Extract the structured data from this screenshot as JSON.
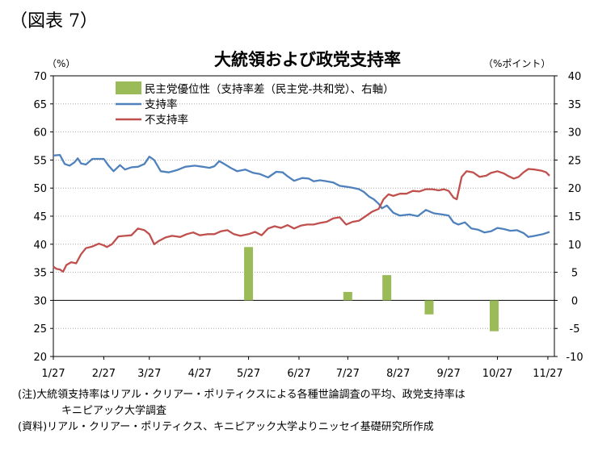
{
  "figure_label": "（図表 7）",
  "notes": {
    "note1": "(注)大統領支持率はリアル・クリアー・ポリティクスによる各種世論調査の平均、政党支持率は",
    "note1_cont": "キニピアック大学調査",
    "source": "(資料)リアル・クリアー・ポリティクス、キニピアック大学よりニッセイ基礎研究所作成"
  },
  "chart_data": {
    "type": "line",
    "title": "大統領および政党支持率",
    "y_unit": "（%）",
    "y2_unit": "（%ポイント）",
    "ylim": [
      20,
      70
    ],
    "y2lim": [
      -10,
      40
    ],
    "yticks": [
      "70",
      "65",
      "60",
      "55",
      "50",
      "45",
      "40",
      "35",
      "30",
      "25",
      "20"
    ],
    "y2ticks": [
      "40",
      "35",
      "30",
      "25",
      "20",
      "15",
      "10",
      "5",
      "0",
      "-5",
      "-10"
    ],
    "xlim": [
      "1/27",
      "11/27"
    ],
    "xticks": [
      "1/27",
      "2/27",
      "3/27",
      "4/27",
      "5/27",
      "6/27",
      "7/27",
      "8/27",
      "9/27",
      "10/27",
      "11/27"
    ],
    "grid": "horizontal dotted",
    "legend_position": "top-left",
    "series": [
      {
        "name": "民主党優位性（支持率差（民主党-共和党）、右軸）",
        "type": "bar",
        "axis": "right",
        "color": "#9bbb59",
        "points": [
          [
            "5/27",
            9.5
          ],
          [
            "7/27",
            1.5
          ],
          [
            "8/20",
            4.5
          ],
          [
            "9/15",
            -2.5
          ],
          [
            "10/25",
            -5.5
          ]
        ]
      },
      {
        "name": "支持率",
        "type": "line",
        "axis": "left",
        "color": "#4f81bd",
        "points": [
          [
            "1/27",
            55.8
          ],
          [
            "1/31",
            55.9
          ],
          [
            "2/3",
            54.3
          ],
          [
            "2/6",
            54.0
          ],
          [
            "2/9",
            54.6
          ],
          [
            "2/11",
            55.3
          ],
          [
            "2/13",
            54.4
          ],
          [
            "2/16",
            54.2
          ],
          [
            "2/20",
            55.2
          ],
          [
            "2/27",
            55.2
          ],
          [
            "3/2",
            54.0
          ],
          [
            "3/5",
            53.0
          ],
          [
            "3/9",
            54.1
          ],
          [
            "3/12",
            53.3
          ],
          [
            "3/16",
            53.7
          ],
          [
            "3/20",
            53.8
          ],
          [
            "3/24",
            54.3
          ],
          [
            "3/27",
            55.6
          ],
          [
            "3/30",
            55.0
          ],
          [
            "4/3",
            53.0
          ],
          [
            "4/8",
            52.8
          ],
          [
            "4/13",
            53.2
          ],
          [
            "4/18",
            53.8
          ],
          [
            "4/24",
            54.0
          ],
          [
            "4/29",
            53.8
          ],
          [
            "5/3",
            53.6
          ],
          [
            "5/6",
            53.9
          ],
          [
            "5/9",
            54.8
          ],
          [
            "5/12",
            54.3
          ],
          [
            "5/16",
            53.6
          ],
          [
            "5/20",
            53.0
          ],
          [
            "5/25",
            53.3
          ],
          [
            "5/30",
            52.7
          ],
          [
            "6/3",
            52.5
          ],
          [
            "6/8",
            51.9
          ],
          [
            "6/13",
            52.9
          ],
          [
            "6/17",
            52.8
          ],
          [
            "6/20",
            52.1
          ],
          [
            "6/24",
            51.3
          ],
          [
            "6/29",
            51.8
          ],
          [
            "7/3",
            51.7
          ],
          [
            "7/6",
            51.2
          ],
          [
            "7/10",
            51.4
          ],
          [
            "7/14",
            51.2
          ],
          [
            "7/18",
            51.0
          ],
          [
            "7/22",
            50.4
          ],
          [
            "7/27",
            50.2
          ],
          [
            "7/31",
            50.0
          ],
          [
            "8/3",
            49.8
          ],
          [
            "8/6",
            49.3
          ],
          [
            "8/9",
            48.5
          ],
          [
            "8/12",
            48.0
          ],
          [
            "8/15",
            47.2
          ],
          [
            "8/17",
            46.4
          ],
          [
            "8/20",
            46.9
          ],
          [
            "8/24",
            45.6
          ],
          [
            "8/28",
            45.1
          ],
          [
            "9/3",
            45.3
          ],
          [
            "9/8",
            45.0
          ],
          [
            "9/13",
            46.1
          ],
          [
            "9/18",
            45.5
          ],
          [
            "9/23",
            45.3
          ],
          [
            "9/27",
            45.1
          ],
          [
            "9/30",
            43.9
          ],
          [
            "10/3",
            43.5
          ],
          [
            "10/7",
            43.9
          ],
          [
            "10/11",
            42.8
          ],
          [
            "10/15",
            42.6
          ],
          [
            "10/19",
            42.1
          ],
          [
            "10/23",
            42.3
          ],
          [
            "10/27",
            42.9
          ],
          [
            "10/31",
            42.7
          ],
          [
            "11/4",
            42.4
          ],
          [
            "11/8",
            42.5
          ],
          [
            "11/12",
            42.0
          ],
          [
            "11/15",
            41.3
          ],
          [
            "11/19",
            41.5
          ],
          [
            "11/24",
            41.8
          ],
          [
            "11/28",
            42.2
          ]
        ]
      },
      {
        "name": "不支持率",
        "type": "line",
        "axis": "left",
        "color": "#c0504d",
        "points": [
          [
            "1/27",
            36.0
          ],
          [
            "1/29",
            35.6
          ],
          [
            "1/31",
            35.5
          ],
          [
            "2/2",
            35.1
          ],
          [
            "2/4",
            36.3
          ],
          [
            "2/7",
            36.8
          ],
          [
            "2/10",
            36.6
          ],
          [
            "2/13",
            38.2
          ],
          [
            "2/16",
            39.3
          ],
          [
            "2/20",
            39.6
          ],
          [
            "2/24",
            40.1
          ],
          [
            "2/27",
            39.8
          ],
          [
            "3/1",
            39.5
          ],
          [
            "3/4",
            40.0
          ],
          [
            "3/8",
            41.4
          ],
          [
            "3/12",
            41.5
          ],
          [
            "3/16",
            41.6
          ],
          [
            "3/20",
            42.8
          ],
          [
            "3/24",
            42.5
          ],
          [
            "3/27",
            41.8
          ],
          [
            "3/30",
            40.0
          ],
          [
            "4/2",
            40.6
          ],
          [
            "4/6",
            41.2
          ],
          [
            "4/10",
            41.5
          ],
          [
            "4/15",
            41.3
          ],
          [
            "4/19",
            41.8
          ],
          [
            "4/23",
            42.1
          ],
          [
            "4/27",
            41.6
          ],
          [
            "5/2",
            41.8
          ],
          [
            "5/6",
            41.8
          ],
          [
            "5/10",
            42.3
          ],
          [
            "5/14",
            42.5
          ],
          [
            "5/18",
            41.8
          ],
          [
            "5/22",
            41.5
          ],
          [
            "5/27",
            41.8
          ],
          [
            "5/31",
            42.2
          ],
          [
            "6/4",
            41.6
          ],
          [
            "6/8",
            42.8
          ],
          [
            "6/12",
            43.2
          ],
          [
            "6/16",
            42.9
          ],
          [
            "6/20",
            43.4
          ],
          [
            "6/24",
            42.8
          ],
          [
            "6/28",
            43.3
          ],
          [
            "7/2",
            43.5
          ],
          [
            "7/6",
            43.5
          ],
          [
            "7/10",
            43.8
          ],
          [
            "7/14",
            44.0
          ],
          [
            "7/18",
            44.6
          ],
          [
            "7/22",
            44.8
          ],
          [
            "7/26",
            43.5
          ],
          [
            "7/30",
            44.0
          ],
          [
            "8/3",
            44.2
          ],
          [
            "8/7",
            45.0
          ],
          [
            "8/11",
            45.8
          ],
          [
            "8/15",
            46.3
          ],
          [
            "8/18",
            48.0
          ],
          [
            "8/21",
            48.9
          ],
          [
            "8/24",
            48.6
          ],
          [
            "8/28",
            49.0
          ],
          [
            "9/1",
            49.0
          ],
          [
            "9/5",
            49.5
          ],
          [
            "9/9",
            49.4
          ],
          [
            "9/13",
            49.8
          ],
          [
            "9/17",
            49.8
          ],
          [
            "9/21",
            49.6
          ],
          [
            "9/24",
            49.8
          ],
          [
            "9/27",
            49.5
          ],
          [
            "9/30",
            48.3
          ],
          [
            "10/2",
            48.0
          ],
          [
            "10/5",
            52.0
          ],
          [
            "10/8",
            53.0
          ],
          [
            "10/12",
            52.8
          ],
          [
            "10/16",
            52.0
          ],
          [
            "10/20",
            52.2
          ],
          [
            "10/23",
            52.7
          ],
          [
            "10/27",
            53.0
          ],
          [
            "10/31",
            52.6
          ],
          [
            "11/3",
            52.1
          ],
          [
            "11/6",
            51.7
          ],
          [
            "11/9",
            52.0
          ],
          [
            "11/12",
            52.8
          ],
          [
            "11/15",
            53.4
          ],
          [
            "11/19",
            53.3
          ],
          [
            "11/23",
            53.1
          ],
          [
            "11/26",
            52.8
          ],
          [
            "11/28",
            52.2
          ]
        ]
      }
    ]
  }
}
